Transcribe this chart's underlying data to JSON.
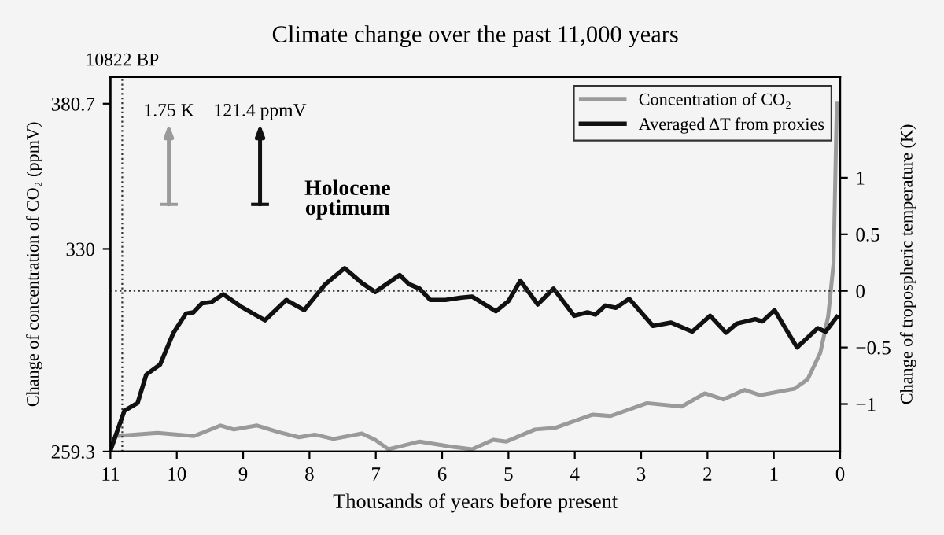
{
  "chart_data": {
    "type": "line",
    "title": "Climate change over the past 11,000 years",
    "xlabel": "Thousands of years before present",
    "ylabel": "Change of concentration of CO₂ (ppmV)",
    "y2label": "Change of tropospheric temperature (K)",
    "xlim": [
      11,
      0
    ],
    "xticks": [
      11,
      10,
      9,
      8,
      7,
      6,
      5,
      4,
      3,
      2,
      1,
      0
    ],
    "ylim": [
      259.3,
      390
    ],
    "yticks": [
      259.3,
      330,
      380.7
    ],
    "y2lim": [
      -1.42,
      1.89
    ],
    "y2ticks": [
      {
        "value": -1,
        "label": "−1"
      },
      {
        "value": -0.5,
        "label": "−0.5"
      },
      0,
      0.5,
      1
    ],
    "series": [
      {
        "name": "Concentration of CO₂",
        "color": "#9a9a9a",
        "x": [
          11,
          10.92,
          10.29,
          9.74,
          9.34,
          9.14,
          8.79,
          8.47,
          8.16,
          7.92,
          7.64,
          7.21,
          7.01,
          6.81,
          6.34,
          5.86,
          5.55,
          5.23,
          5.03,
          4.6,
          4.29,
          3.73,
          3.46,
          2.91,
          2.39,
          2.04,
          1.76,
          1.44,
          1.21,
          0.69,
          0.49,
          0.3,
          0.18,
          0.1,
          0.05
        ],
        "values": [
          259.3,
          264.7,
          265.8,
          264.7,
          268.4,
          267.0,
          268.4,
          266.1,
          264.3,
          265.2,
          263.7,
          265.6,
          263.4,
          260.1,
          262.8,
          261.0,
          260.1,
          263.4,
          262.8,
          267.0,
          267.6,
          272.2,
          271.7,
          276.2,
          275.0,
          279.6,
          277.5,
          280.8,
          279.0,
          281.2,
          284.5,
          293.7,
          306.6,
          325.0,
          380.7
        ]
      },
      {
        "name": "Averaged ΔT from proxies",
        "color": "#111111",
        "axis": "y2",
        "x": [
          11,
          10.79,
          10.59,
          10.46,
          10.25,
          10.05,
          9.86,
          9.75,
          9.62,
          9.48,
          9.3,
          9.03,
          8.67,
          8.35,
          8.08,
          7.76,
          7.47,
          7.21,
          7.01,
          6.64,
          6.5,
          6.34,
          6.18,
          5.95,
          5.71,
          5.55,
          5.19,
          5.0,
          4.82,
          4.56,
          4.32,
          4.01,
          3.81,
          3.69,
          3.54,
          3.38,
          3.18,
          2.82,
          2.55,
          2.23,
          1.96,
          1.72,
          1.56,
          1.28,
          1.17,
          0.99,
          0.65,
          0.34,
          0.22,
          0.05
        ],
        "values": [
          -1.41,
          -1.06,
          -0.99,
          -0.74,
          -0.65,
          -0.37,
          -0.2,
          -0.19,
          -0.11,
          -0.1,
          -0.03,
          -0.14,
          -0.26,
          -0.08,
          -0.17,
          0.06,
          0.2,
          0.07,
          -0.01,
          0.14,
          0.06,
          0.02,
          -0.08,
          -0.08,
          -0.06,
          -0.05,
          -0.18,
          -0.09,
          0.09,
          -0.12,
          0.02,
          -0.22,
          -0.19,
          -0.21,
          -0.13,
          -0.15,
          -0.07,
          -0.31,
          -0.28,
          -0.36,
          -0.22,
          -0.37,
          -0.29,
          -0.25,
          -0.27,
          -0.17,
          -0.5,
          -0.33,
          -0.36,
          -0.23
        ]
      }
    ],
    "ref_lines": [
      {
        "axis": "x",
        "value": 10.822,
        "label": "10822 BP",
        "line_style": "dotted"
      },
      {
        "axis": "y2",
        "value": 0,
        "line_style": "dotted"
      }
    ],
    "annotations": [
      "Holocene optimum",
      "1.75 K",
      "121.4 ppmV"
    ],
    "legend": "top right",
    "grid": false
  }
}
